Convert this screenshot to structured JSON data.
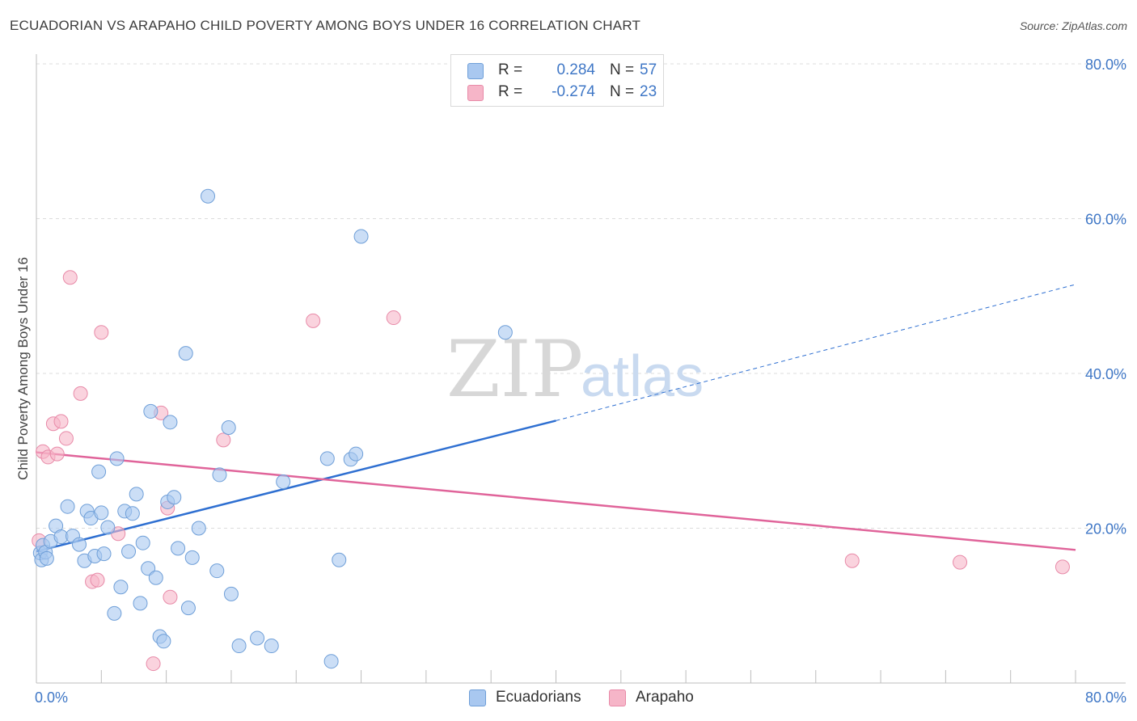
{
  "title": "ECUADORIAN VS ARAPAHO CHILD POVERTY AMONG BOYS UNDER 16 CORRELATION CHART",
  "source": "Source: ZipAtlas.com",
  "watermark": {
    "part1": "ZIP",
    "part2": "atlas"
  },
  "legend_stats": [
    {
      "r_label": "R =",
      "r_value": "0.284",
      "n_label": "N =",
      "n_value": "57",
      "color": "#a9c8f0"
    },
    {
      "r_label": "R =",
      "r_value": "-0.274",
      "n_label": "N =",
      "n_value": "23",
      "color": "#f6b5c8"
    }
  ],
  "chart_data": {
    "type": "scatter",
    "title": "ECUADORIAN VS ARAPAHO CHILD POVERTY AMONG BOYS UNDER 16 CORRELATION CHART",
    "xlabel": "",
    "ylabel": "Child Poverty Among Boys Under 16",
    "xlim": [
      0,
      80
    ],
    "ylim": [
      0,
      80
    ],
    "x_tick_labels": [
      "0.0%",
      "80.0%"
    ],
    "y_ticks": [
      {
        "value": 20,
        "label": "20.0%"
      },
      {
        "value": 40,
        "label": "40.0%"
      },
      {
        "value": 60,
        "label": "60.0%"
      },
      {
        "value": 80,
        "label": "80.0%"
      }
    ],
    "grid": true,
    "series": [
      {
        "name": "Ecuadorians",
        "color": "#a9c8f0",
        "stroke": "#6f9fd8",
        "line_color": "#2e6fd1",
        "trend": {
          "x_start": 0,
          "y_start": 17.0,
          "x_solid_end": 40,
          "y_solid_end": 33.9,
          "x_end": 80,
          "y_end": 51.5
        },
        "points": [
          [
            0.3,
            16.8
          ],
          [
            0.4,
            15.9
          ],
          [
            0.5,
            17.8
          ],
          [
            0.7,
            16.9
          ],
          [
            0.8,
            16.1
          ],
          [
            1.1,
            18.3
          ],
          [
            1.5,
            20.3
          ],
          [
            1.9,
            18.9
          ],
          [
            2.4,
            22.8
          ],
          [
            2.8,
            19.0
          ],
          [
            3.3,
            17.9
          ],
          [
            3.7,
            15.8
          ],
          [
            3.9,
            22.2
          ],
          [
            4.2,
            21.3
          ],
          [
            4.5,
            16.4
          ],
          [
            4.8,
            27.3
          ],
          [
            5.0,
            22.0
          ],
          [
            5.2,
            16.7
          ],
          [
            5.5,
            20.1
          ],
          [
            6.0,
            9.0
          ],
          [
            6.2,
            29.0
          ],
          [
            6.5,
            12.4
          ],
          [
            6.8,
            22.2
          ],
          [
            7.1,
            17.0
          ],
          [
            7.4,
            21.9
          ],
          [
            7.7,
            24.4
          ],
          [
            8.0,
            10.3
          ],
          [
            8.2,
            18.1
          ],
          [
            8.6,
            14.8
          ],
          [
            8.8,
            35.1
          ],
          [
            9.2,
            13.6
          ],
          [
            9.5,
            6.0
          ],
          [
            9.8,
            5.4
          ],
          [
            10.1,
            23.4
          ],
          [
            10.3,
            33.7
          ],
          [
            10.6,
            24.0
          ],
          [
            10.9,
            17.4
          ],
          [
            11.5,
            42.6
          ],
          [
            11.7,
            9.7
          ],
          [
            12.0,
            16.2
          ],
          [
            12.5,
            20.0
          ],
          [
            13.2,
            62.9
          ],
          [
            13.9,
            14.5
          ],
          [
            14.1,
            26.9
          ],
          [
            14.8,
            33.0
          ],
          [
            15.0,
            11.5
          ],
          [
            15.6,
            4.8
          ],
          [
            17.0,
            5.8
          ],
          [
            18.1,
            4.8
          ],
          [
            19.0,
            26.0
          ],
          [
            22.4,
            29.0
          ],
          [
            22.7,
            2.8
          ],
          [
            23.3,
            15.9
          ],
          [
            24.2,
            28.9
          ],
          [
            24.6,
            29.6
          ],
          [
            25.0,
            57.7
          ],
          [
            36.1,
            45.3
          ]
        ]
      },
      {
        "name": "Arapaho",
        "color": "#f6b5c8",
        "stroke": "#e88aa8",
        "line_color": "#e0649a",
        "trend": {
          "x_start": 0,
          "y_start": 29.8,
          "x_end": 80,
          "y_end": 17.2
        },
        "points": [
          [
            0.2,
            18.4
          ],
          [
            0.5,
            29.9
          ],
          [
            0.9,
            29.2
          ],
          [
            1.3,
            33.5
          ],
          [
            1.6,
            29.6
          ],
          [
            1.9,
            33.8
          ],
          [
            2.3,
            31.6
          ],
          [
            2.6,
            52.4
          ],
          [
            3.4,
            37.4
          ],
          [
            4.3,
            13.1
          ],
          [
            4.7,
            13.3
          ],
          [
            5.0,
            45.3
          ],
          [
            6.3,
            19.3
          ],
          [
            9.0,
            2.5
          ],
          [
            9.6,
            34.9
          ],
          [
            10.1,
            22.6
          ],
          [
            10.3,
            11.1
          ],
          [
            14.4,
            31.4
          ],
          [
            21.3,
            46.8
          ],
          [
            27.5,
            47.2
          ],
          [
            62.8,
            15.8
          ],
          [
            71.1,
            15.6
          ],
          [
            79.0,
            15.0
          ]
        ]
      }
    ]
  }
}
